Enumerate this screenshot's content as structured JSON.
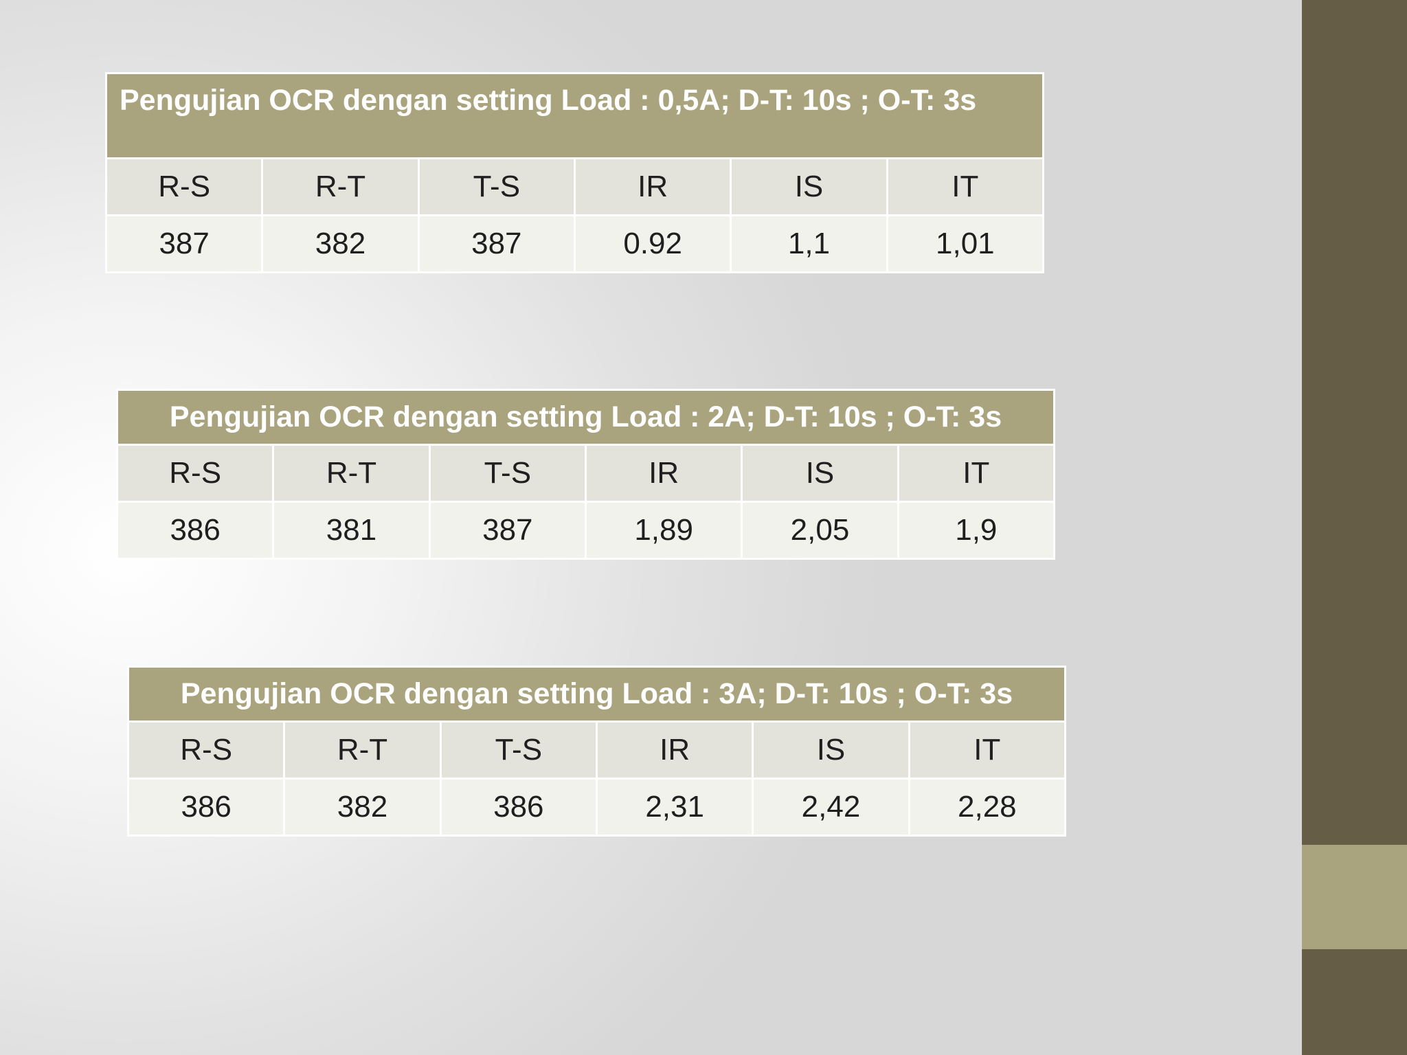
{
  "tables": [
    {
      "title": "Pengujian OCR dengan setting Load : 0,5A; D-T: 10s ; O-T: 3s",
      "headers": [
        "R-S",
        "R-T",
        "T-S",
        "IR",
        "IS",
        "IT"
      ],
      "values": [
        "387",
        "382",
        "387",
        "0.92",
        "1,1",
        "1,01"
      ]
    },
    {
      "title": "Pengujian OCR dengan setting Load : 2A; D-T: 10s ; O-T: 3s",
      "headers": [
        "R-S",
        "R-T",
        "T-S",
        "IR",
        "IS",
        "IT"
      ],
      "values": [
        "386",
        "381",
        "387",
        "1,89",
        "2,05",
        "1,9"
      ]
    },
    {
      "title": "Pengujian OCR dengan setting Load : 3A; D-T: 10s ; O-T: 3s",
      "headers": [
        "R-S",
        "R-T",
        "T-S",
        "IR",
        "IS",
        "IT"
      ],
      "values": [
        "386",
        "382",
        "386",
        "2,31",
        "2,42",
        "2,28"
      ]
    }
  ],
  "theme": {
    "header_color": "#a9a47e",
    "sidebar_color": "#665d47",
    "accent_color": "#a9a47e"
  }
}
